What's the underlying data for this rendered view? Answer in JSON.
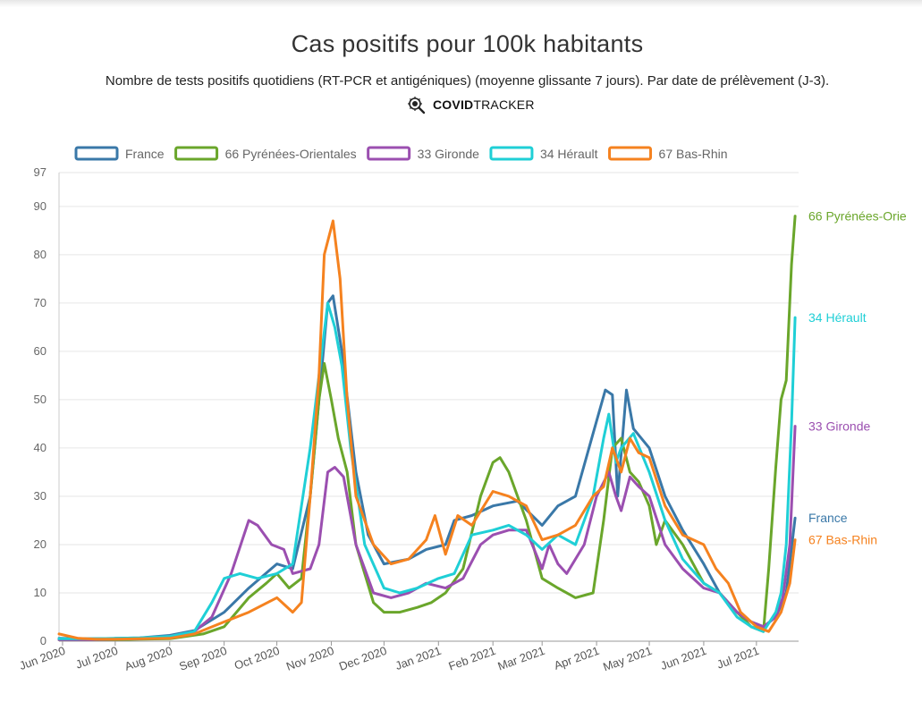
{
  "page": {
    "title": "Cas positifs pour 100k habitants",
    "subtitle": "Nombre de tests positifs quotidiens (RT-PCR et antigéniques) (moyenne glissante 7 jours). Par date de prélèvement (J-3).",
    "brand_bold": "COVID",
    "brand_light": "TRACKER",
    "brand_icon": "virus-magnifier-icon"
  },
  "chart_data": {
    "type": "line",
    "title": "Cas positifs pour 100k habitants",
    "subtitle": "Nombre de tests positifs quotidiens (RT-PCR et antigéniques) (moyenne glissante 7 jours). Par date de prélèvement (J-3).",
    "xlabel": "",
    "ylabel": "",
    "x_axis": "date",
    "xlim": [
      "2020-05-30",
      "2021-07-25"
    ],
    "ylim": [
      0,
      97
    ],
    "y_ticks": [
      0,
      10,
      20,
      30,
      40,
      50,
      60,
      70,
      80,
      90,
      97
    ],
    "x_ticks": [
      {
        "label": "Jun 2020",
        "date": "2020-06-01"
      },
      {
        "label": "Jul 2020",
        "date": "2020-07-01"
      },
      {
        "label": "Aug 2020",
        "date": "2020-08-01"
      },
      {
        "label": "Sep 2020",
        "date": "2020-09-01"
      },
      {
        "label": "Oct 2020",
        "date": "2020-10-01"
      },
      {
        "label": "Nov 2020",
        "date": "2020-11-01"
      },
      {
        "label": "Dec 2020",
        "date": "2020-12-01"
      },
      {
        "label": "Jan 2021",
        "date": "2021-01-01"
      },
      {
        "label": "Feb 2021",
        "date": "2021-02-01"
      },
      {
        "label": "Mar 2021",
        "date": "2021-03-01"
      },
      {
        "label": "Apr 2021",
        "date": "2021-04-01"
      },
      {
        "label": "May 2021",
        "date": "2021-05-01"
      },
      {
        "label": "Jun 2021",
        "date": "2021-06-01"
      },
      {
        "label": "Jul 2021",
        "date": "2021-07-01"
      }
    ],
    "grid": "horizontal",
    "legend_position": "top",
    "series": [
      {
        "name": "France",
        "end_label": "France",
        "color": "#3a78a8",
        "points": [
          [
            "2020-05-30",
            0.6
          ],
          [
            "2020-06-15",
            0.5
          ],
          [
            "2020-07-01",
            0.6
          ],
          [
            "2020-07-15",
            0.7
          ],
          [
            "2020-08-01",
            1.2
          ],
          [
            "2020-08-15",
            2.2
          ],
          [
            "2020-09-01",
            6
          ],
          [
            "2020-09-15",
            11
          ],
          [
            "2020-10-01",
            16
          ],
          [
            "2020-10-10",
            15
          ],
          [
            "2020-10-20",
            30
          ],
          [
            "2020-10-25",
            50
          ],
          [
            "2020-10-30",
            70
          ],
          [
            "2020-11-02",
            71.5
          ],
          [
            "2020-11-07",
            60
          ],
          [
            "2020-11-15",
            35
          ],
          [
            "2020-11-22",
            22
          ],
          [
            "2020-12-01",
            16
          ],
          [
            "2020-12-15",
            17
          ],
          [
            "2020-12-25",
            19
          ],
          [
            "2021-01-05",
            20
          ],
          [
            "2021-01-10",
            25
          ],
          [
            "2021-01-20",
            26
          ],
          [
            "2021-02-01",
            28
          ],
          [
            "2021-02-15",
            29
          ],
          [
            "2021-03-01",
            24
          ],
          [
            "2021-03-10",
            28
          ],
          [
            "2021-03-20",
            30
          ],
          [
            "2021-03-30",
            43
          ],
          [
            "2021-04-06",
            52
          ],
          [
            "2021-04-10",
            51
          ],
          [
            "2021-04-13",
            30
          ],
          [
            "2021-04-18",
            52
          ],
          [
            "2021-04-22",
            44
          ],
          [
            "2021-05-01",
            40
          ],
          [
            "2021-05-10",
            30
          ],
          [
            "2021-05-20",
            23
          ],
          [
            "2021-06-01",
            16
          ],
          [
            "2021-06-10",
            10
          ],
          [
            "2021-06-20",
            6
          ],
          [
            "2021-06-28",
            4
          ],
          [
            "2021-07-05",
            3
          ],
          [
            "2021-07-12",
            5
          ],
          [
            "2021-07-18",
            10
          ],
          [
            "2021-07-23",
            25.5
          ]
        ]
      },
      {
        "name": "66 Pyrénées-Orientales",
        "end_label": "66 Pyrénées-Orie",
        "color": "#6aa62b",
        "points": [
          [
            "2020-05-30",
            0.3
          ],
          [
            "2020-06-15",
            0.3
          ],
          [
            "2020-07-01",
            0.3
          ],
          [
            "2020-07-15",
            0.4
          ],
          [
            "2020-08-01",
            0.5
          ],
          [
            "2020-08-20",
            1.5
          ],
          [
            "2020-09-01",
            3
          ],
          [
            "2020-09-15",
            9
          ],
          [
            "2020-09-25",
            12
          ],
          [
            "2020-10-01",
            14
          ],
          [
            "2020-10-08",
            11
          ],
          [
            "2020-10-15",
            13
          ],
          [
            "2020-10-20",
            30
          ],
          [
            "2020-10-25",
            50
          ],
          [
            "2020-10-28",
            57.5
          ],
          [
            "2020-11-01",
            50
          ],
          [
            "2020-11-05",
            42
          ],
          [
            "2020-11-10",
            35
          ],
          [
            "2020-11-15",
            20
          ],
          [
            "2020-11-25",
            8
          ],
          [
            "2020-12-01",
            6
          ],
          [
            "2020-12-10",
            6
          ],
          [
            "2020-12-20",
            7
          ],
          [
            "2020-12-28",
            8
          ],
          [
            "2021-01-05",
            10
          ],
          [
            "2021-01-15",
            15
          ],
          [
            "2021-01-25",
            30
          ],
          [
            "2021-02-01",
            37
          ],
          [
            "2021-02-05",
            38
          ],
          [
            "2021-02-10",
            35
          ],
          [
            "2021-02-20",
            25
          ],
          [
            "2021-03-01",
            13
          ],
          [
            "2021-03-10",
            11
          ],
          [
            "2021-03-20",
            9
          ],
          [
            "2021-03-30",
            10
          ],
          [
            "2021-04-05",
            25
          ],
          [
            "2021-04-10",
            40
          ],
          [
            "2021-04-15",
            42
          ],
          [
            "2021-04-20",
            35
          ],
          [
            "2021-04-25",
            33
          ],
          [
            "2021-05-01",
            28
          ],
          [
            "2021-05-05",
            20
          ],
          [
            "2021-05-10",
            25
          ],
          [
            "2021-05-20",
            20
          ],
          [
            "2021-06-01",
            12
          ],
          [
            "2021-06-10",
            10
          ],
          [
            "2021-06-20",
            6
          ],
          [
            "2021-06-28",
            3
          ],
          [
            "2021-07-05",
            2
          ],
          [
            "2021-07-08",
            15
          ],
          [
            "2021-07-12",
            36
          ],
          [
            "2021-07-15",
            50
          ],
          [
            "2021-07-18",
            54
          ],
          [
            "2021-07-21",
            78
          ],
          [
            "2021-07-23",
            88
          ]
        ]
      },
      {
        "name": "33 Gironde",
        "end_label": "33 Gironde",
        "color": "#9b4fb0",
        "points": [
          [
            "2020-05-30",
            0.3
          ],
          [
            "2020-06-15",
            0.3
          ],
          [
            "2020-07-01",
            0.4
          ],
          [
            "2020-07-15",
            0.5
          ],
          [
            "2020-08-01",
            1
          ],
          [
            "2020-08-15",
            2
          ],
          [
            "2020-08-25",
            5
          ],
          [
            "2020-09-05",
            14
          ],
          [
            "2020-09-15",
            25
          ],
          [
            "2020-09-20",
            24
          ],
          [
            "2020-09-28",
            20
          ],
          [
            "2020-10-05",
            19
          ],
          [
            "2020-10-10",
            14
          ],
          [
            "2020-10-20",
            15
          ],
          [
            "2020-10-25",
            20
          ],
          [
            "2020-10-30",
            35
          ],
          [
            "2020-11-03",
            36
          ],
          [
            "2020-11-08",
            34
          ],
          [
            "2020-11-15",
            20
          ],
          [
            "2020-11-25",
            10
          ],
          [
            "2020-12-05",
            9
          ],
          [
            "2020-12-15",
            10
          ],
          [
            "2020-12-25",
            12
          ],
          [
            "2021-01-05",
            11
          ],
          [
            "2021-01-15",
            13
          ],
          [
            "2021-01-25",
            20
          ],
          [
            "2021-02-01",
            22
          ],
          [
            "2021-02-10",
            23
          ],
          [
            "2021-02-20",
            23
          ],
          [
            "2021-03-01",
            15
          ],
          [
            "2021-03-05",
            20
          ],
          [
            "2021-03-10",
            16
          ],
          [
            "2021-03-15",
            14
          ],
          [
            "2021-03-25",
            20
          ],
          [
            "2021-04-01",
            30
          ],
          [
            "2021-04-08",
            35
          ],
          [
            "2021-04-12",
            30
          ],
          [
            "2021-04-15",
            27
          ],
          [
            "2021-04-20",
            34
          ],
          [
            "2021-04-25",
            32
          ],
          [
            "2021-05-01",
            30
          ],
          [
            "2021-05-10",
            20
          ],
          [
            "2021-05-20",
            15
          ],
          [
            "2021-06-01",
            11
          ],
          [
            "2021-06-10",
            10
          ],
          [
            "2021-06-20",
            6
          ],
          [
            "2021-06-28",
            4
          ],
          [
            "2021-07-05",
            3
          ],
          [
            "2021-07-12",
            5
          ],
          [
            "2021-07-16",
            9
          ],
          [
            "2021-07-20",
            20
          ],
          [
            "2021-07-23",
            44.5
          ]
        ]
      },
      {
        "name": "34 Hérault",
        "end_label": "34 Hérault",
        "color": "#1fcfd6",
        "points": [
          [
            "2020-05-30",
            0.5
          ],
          [
            "2020-06-15",
            0.5
          ],
          [
            "2020-07-01",
            0.6
          ],
          [
            "2020-07-15",
            0.7
          ],
          [
            "2020-08-01",
            1
          ],
          [
            "2020-08-15",
            2
          ],
          [
            "2020-08-25",
            8
          ],
          [
            "2020-09-01",
            13
          ],
          [
            "2020-09-10",
            14
          ],
          [
            "2020-09-20",
            13
          ],
          [
            "2020-10-01",
            14
          ],
          [
            "2020-10-10",
            16
          ],
          [
            "2020-10-15",
            28
          ],
          [
            "2020-10-20",
            40
          ],
          [
            "2020-10-25",
            55
          ],
          [
            "2020-10-30",
            70
          ],
          [
            "2020-11-03",
            65
          ],
          [
            "2020-11-07",
            57
          ],
          [
            "2020-11-12",
            40
          ],
          [
            "2020-11-20",
            20
          ],
          [
            "2020-12-01",
            11
          ],
          [
            "2020-12-10",
            10
          ],
          [
            "2020-12-20",
            11
          ],
          [
            "2021-01-01",
            13
          ],
          [
            "2021-01-10",
            14
          ],
          [
            "2021-01-20",
            22
          ],
          [
            "2021-02-01",
            23
          ],
          [
            "2021-02-10",
            24
          ],
          [
            "2021-02-20",
            22
          ],
          [
            "2021-03-01",
            19
          ],
          [
            "2021-03-10",
            22
          ],
          [
            "2021-03-20",
            20
          ],
          [
            "2021-03-30",
            30
          ],
          [
            "2021-04-05",
            42
          ],
          [
            "2021-04-08",
            47
          ],
          [
            "2021-04-12",
            37
          ],
          [
            "2021-04-15",
            40
          ],
          [
            "2021-04-22",
            43
          ],
          [
            "2021-05-01",
            35
          ],
          [
            "2021-05-10",
            25
          ],
          [
            "2021-05-20",
            17
          ],
          [
            "2021-06-01",
            12
          ],
          [
            "2021-06-10",
            10
          ],
          [
            "2021-06-20",
            5
          ],
          [
            "2021-06-28",
            3
          ],
          [
            "2021-07-05",
            2
          ],
          [
            "2021-07-12",
            6
          ],
          [
            "2021-07-15",
            10
          ],
          [
            "2021-07-18",
            20
          ],
          [
            "2021-07-21",
            45
          ],
          [
            "2021-07-23",
            67
          ]
        ]
      },
      {
        "name": "67 Bas-Rhin",
        "end_label": "67 Bas-Rhin",
        "color": "#f5821f",
        "points": [
          [
            "2020-05-30",
            1.5
          ],
          [
            "2020-06-10",
            0.6
          ],
          [
            "2020-06-20",
            0.4
          ],
          [
            "2020-07-01",
            0.4
          ],
          [
            "2020-07-15",
            0.5
          ],
          [
            "2020-08-01",
            0.6
          ],
          [
            "2020-08-15",
            1.5
          ],
          [
            "2020-09-01",
            4
          ],
          [
            "2020-09-15",
            6
          ],
          [
            "2020-10-01",
            9
          ],
          [
            "2020-10-10",
            6
          ],
          [
            "2020-10-15",
            8
          ],
          [
            "2020-10-20",
            30
          ],
          [
            "2020-10-25",
            55
          ],
          [
            "2020-10-28",
            80
          ],
          [
            "2020-11-02",
            87
          ],
          [
            "2020-11-06",
            75
          ],
          [
            "2020-11-10",
            50
          ],
          [
            "2020-11-15",
            30
          ],
          [
            "2020-11-25",
            20
          ],
          [
            "2020-12-05",
            16
          ],
          [
            "2020-12-15",
            17
          ],
          [
            "2020-12-25",
            21
          ],
          [
            "2020-12-30",
            26
          ],
          [
            "2021-01-05",
            18
          ],
          [
            "2021-01-12",
            26
          ],
          [
            "2021-01-20",
            24
          ],
          [
            "2021-02-01",
            31
          ],
          [
            "2021-02-10",
            30
          ],
          [
            "2021-02-20",
            28
          ],
          [
            "2021-03-01",
            21
          ],
          [
            "2021-03-10",
            22
          ],
          [
            "2021-03-20",
            24
          ],
          [
            "2021-03-30",
            30
          ],
          [
            "2021-04-05",
            32
          ],
          [
            "2021-04-10",
            40
          ],
          [
            "2021-04-15",
            35
          ],
          [
            "2021-04-20",
            42
          ],
          [
            "2021-04-25",
            39
          ],
          [
            "2021-05-01",
            38
          ],
          [
            "2021-05-10",
            28
          ],
          [
            "2021-05-20",
            22
          ],
          [
            "2021-06-01",
            20
          ],
          [
            "2021-06-08",
            15
          ],
          [
            "2021-06-15",
            12
          ],
          [
            "2021-06-22",
            6
          ],
          [
            "2021-07-01",
            3
          ],
          [
            "2021-07-08",
            2
          ],
          [
            "2021-07-15",
            6
          ],
          [
            "2021-07-20",
            12
          ],
          [
            "2021-07-23",
            21
          ]
        ]
      }
    ]
  }
}
